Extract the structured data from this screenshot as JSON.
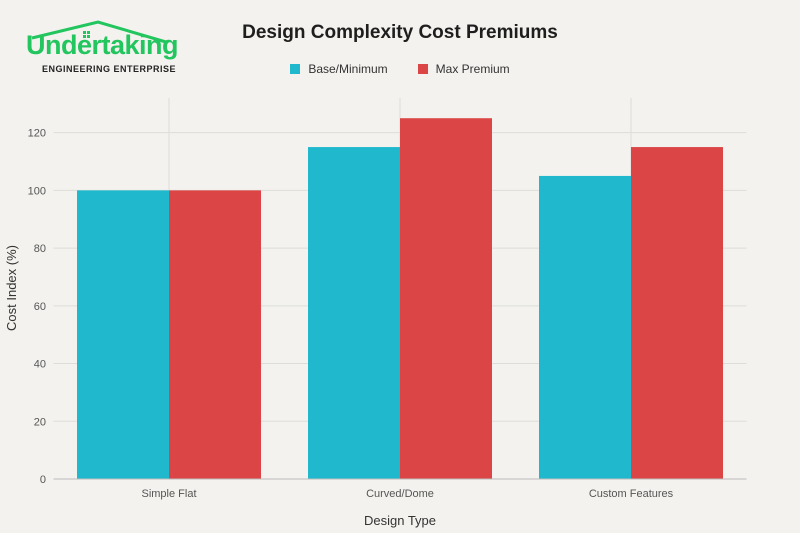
{
  "logo": {
    "name": "Undertaking",
    "tagline": "ENGINEERING ENTERPRISE",
    "color": "#22c55e"
  },
  "chart_data": {
    "type": "bar",
    "title": "Design Complexity Cost Premiums",
    "xlabel": "Design Type",
    "ylabel": "Cost Index (%)",
    "categories": [
      "Simple Flat",
      "Curved/Dome",
      "Custom Features"
    ],
    "series": [
      {
        "name": "Base/Minimum",
        "values": [
          100,
          115,
          105
        ],
        "color": "#1fb8cd"
      },
      {
        "name": "Max Premium",
        "values": [
          100,
          125,
          115
        ],
        "color": "#db4545"
      }
    ],
    "yticks": [
      0,
      20,
      40,
      60,
      80,
      100,
      120
    ],
    "ylim": [
      0,
      132
    ],
    "grid": true,
    "legend_position": "top-center"
  }
}
